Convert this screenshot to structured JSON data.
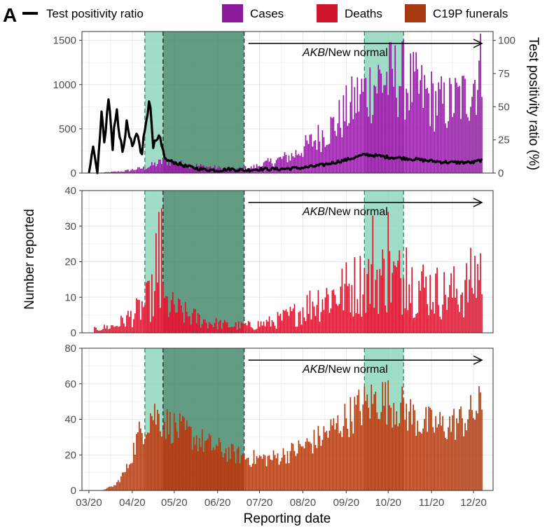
{
  "figure": {
    "panel_letter": "A",
    "x_axis_title": "Reporting date",
    "y_axis_title": "Number reported",
    "y2_axis_title": "Test positivity ratio (%)"
  },
  "legend": {
    "items": [
      {
        "label": "Test positivity ratio",
        "kind": "line",
        "color": "#000000"
      },
      {
        "label": "Cases",
        "kind": "fill",
        "color": "#8B1A9B"
      },
      {
        "label": "Deaths",
        "kind": "fill",
        "color": "#D0152E"
      },
      {
        "label": "C19P funerals",
        "kind": "fill",
        "color": "#A83A12"
      }
    ]
  },
  "annotation": {
    "italic": "AKB",
    "rest": "/New normal",
    "start_date": "2020-06-23",
    "end_date": "2020-12-07"
  },
  "shading": {
    "light_color": "#7fd1b4",
    "dark_color": "#2e7c5a",
    "bands": [
      {
        "start": "2020-04-10",
        "end": "2020-04-23",
        "style": "light"
      },
      {
        "start": "2020-04-23",
        "end": "2020-06-20",
        "style": "dark"
      },
      {
        "start": "2020-09-14",
        "end": "2020-10-12",
        "style": "light"
      }
    ]
  },
  "x_axis": {
    "start": "2020-02-25",
    "end": "2020-12-15",
    "tick_labels": [
      "03/20",
      "04/20",
      "05/20",
      "06/20",
      "07/20",
      "08/20",
      "09/20",
      "10/20",
      "11/20",
      "12/20"
    ],
    "tick_dates": [
      "2020-03-01",
      "2020-04-01",
      "2020-05-01",
      "2020-06-01",
      "2020-07-01",
      "2020-08-01",
      "2020-09-01",
      "2020-10-01",
      "2020-11-01",
      "2020-12-01"
    ]
  },
  "chart_data": [
    {
      "type": "bar",
      "series_name": "Cases",
      "ylim": [
        0,
        1600
      ],
      "yticks": [
        0,
        500,
        1000,
        1500
      ],
      "y2lim": [
        0,
        106.7
      ],
      "y2ticks": [
        0,
        25,
        50,
        75,
        100
      ],
      "points": [
        [
          "2020-03-10",
          5
        ],
        [
          "2020-03-25",
          20
        ],
        [
          "2020-04-10",
          60
        ],
        [
          "2020-04-25",
          140
        ],
        [
          "2020-05-10",
          90
        ],
        [
          "2020-05-25",
          70
        ],
        [
          "2020-06-10",
          45
        ],
        [
          "2020-06-25",
          60
        ],
        [
          "2020-07-10",
          130
        ],
        [
          "2020-07-25",
          200
        ],
        [
          "2020-08-10",
          380
        ],
        [
          "2020-08-25",
          560
        ],
        [
          "2020-09-10",
          860
        ],
        [
          "2020-09-25",
          1050
        ],
        [
          "2020-10-10",
          1080
        ],
        [
          "2020-10-25",
          900
        ],
        [
          "2020-11-10",
          760
        ],
        [
          "2020-11-25",
          860
        ],
        [
          "2020-12-07",
          1200
        ]
      ],
      "line_series": {
        "name": "Test positivity ratio",
        "points": [
          [
            "2020-03-01",
            0
          ],
          [
            "2020-03-04",
            20
          ],
          [
            "2020-03-07",
            0
          ],
          [
            "2020-03-10",
            45
          ],
          [
            "2020-03-12",
            25
          ],
          [
            "2020-03-15",
            55
          ],
          [
            "2020-03-18",
            22
          ],
          [
            "2020-03-21",
            45
          ],
          [
            "2020-03-25",
            15
          ],
          [
            "2020-03-28",
            35
          ],
          [
            "2020-04-01",
            20
          ],
          [
            "2020-04-05",
            30
          ],
          [
            "2020-04-08",
            15
          ],
          [
            "2020-04-13",
            58
          ],
          [
            "2020-04-16",
            18
          ],
          [
            "2020-04-20",
            25
          ],
          [
            "2020-04-25",
            10
          ],
          [
            "2020-05-01",
            8
          ],
          [
            "2020-05-10",
            5
          ],
          [
            "2020-05-20",
            3
          ],
          [
            "2020-06-01",
            2
          ],
          [
            "2020-06-10",
            3
          ],
          [
            "2020-06-20",
            2
          ],
          [
            "2020-07-01",
            3
          ],
          [
            "2020-07-15",
            3
          ],
          [
            "2020-08-01",
            4
          ],
          [
            "2020-08-15",
            6
          ],
          [
            "2020-09-01",
            10
          ],
          [
            "2020-09-15",
            14
          ],
          [
            "2020-10-01",
            12
          ],
          [
            "2020-10-15",
            11
          ],
          [
            "2020-11-01",
            9
          ],
          [
            "2020-11-15",
            8
          ],
          [
            "2020-12-01",
            8
          ],
          [
            "2020-12-07",
            10
          ]
        ]
      }
    },
    {
      "type": "bar",
      "series_name": "Deaths",
      "ylim": [
        0,
        40
      ],
      "yticks": [
        0,
        10,
        20,
        30,
        40
      ],
      "points": [
        [
          "2020-03-05",
          1
        ],
        [
          "2020-03-20",
          2
        ],
        [
          "2020-04-05",
          6
        ],
        [
          "2020-04-15",
          10
        ],
        [
          "2020-04-25",
          8
        ],
        [
          "2020-05-10",
          5
        ],
        [
          "2020-05-25",
          3
        ],
        [
          "2020-06-10",
          2
        ],
        [
          "2020-06-25",
          2
        ],
        [
          "2020-07-10",
          3
        ],
        [
          "2020-07-25",
          5
        ],
        [
          "2020-08-10",
          9
        ],
        [
          "2020-08-25",
          11
        ],
        [
          "2020-09-10",
          14
        ],
        [
          "2020-09-25",
          16
        ],
        [
          "2020-10-10",
          15
        ],
        [
          "2020-10-25",
          13
        ],
        [
          "2020-11-10",
          11
        ],
        [
          "2020-11-25",
          12
        ],
        [
          "2020-12-07",
          19
        ]
      ],
      "peaks": [
        [
          "2020-04-18",
          28
        ],
        [
          "2020-04-20",
          34
        ],
        [
          "2020-04-22",
          35
        ],
        [
          "2020-09-20",
          33
        ],
        [
          "2020-10-01",
          34
        ],
        [
          "2020-10-14",
          24
        ]
      ]
    },
    {
      "type": "bar",
      "series_name": "C19P funerals",
      "ylim": [
        0,
        80
      ],
      "yticks": [
        0,
        20,
        40,
        60,
        80
      ],
      "points": [
        [
          "2020-03-01",
          0
        ],
        [
          "2020-03-10",
          0
        ],
        [
          "2020-03-20",
          3
        ],
        [
          "2020-03-28",
          12
        ],
        [
          "2020-04-05",
          30
        ],
        [
          "2020-04-15",
          44
        ],
        [
          "2020-04-25",
          38
        ],
        [
          "2020-05-10",
          32
        ],
        [
          "2020-05-25",
          26
        ],
        [
          "2020-06-10",
          21
        ],
        [
          "2020-06-25",
          18
        ],
        [
          "2020-07-10",
          18
        ],
        [
          "2020-07-25",
          22
        ],
        [
          "2020-08-10",
          28
        ],
        [
          "2020-08-25",
          36
        ],
        [
          "2020-09-10",
          46
        ],
        [
          "2020-09-25",
          52
        ],
        [
          "2020-10-10",
          47
        ],
        [
          "2020-10-25",
          38
        ],
        [
          "2020-11-10",
          36
        ],
        [
          "2020-11-25",
          40
        ],
        [
          "2020-12-07",
          48
        ]
      ]
    }
  ]
}
